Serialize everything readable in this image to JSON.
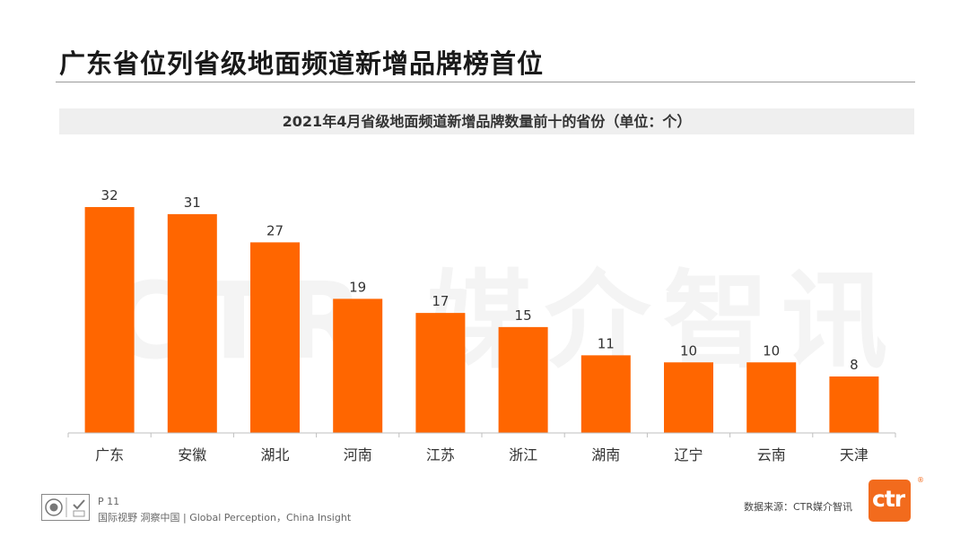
{
  "page_title": "广东省位列省级地面频道新增品牌榜首位",
  "watermark": "CTR 媒介智讯",
  "colors": {
    "bar": "#ff6600",
    "brand": "#f26b1d",
    "subtitle_band": "#efefef"
  },
  "chart_data": {
    "type": "bar",
    "title": "2021年4月省级地面频道新增品牌数量前十的省份（单位：个）",
    "categories": [
      "广东",
      "安徽",
      "湖北",
      "河南",
      "江苏",
      "浙江",
      "湖南",
      "辽宁",
      "云南",
      "天津"
    ],
    "values": [
      32,
      31,
      27,
      19,
      17,
      15,
      11,
      10,
      10,
      8
    ],
    "xlabel": "",
    "ylabel": "",
    "ylim": [
      0,
      32
    ],
    "grid": false,
    "legend": "none"
  },
  "footer": {
    "page_number": "P 11",
    "tagline": "国际视野  洞察中国 |  Global Perception，China Insight",
    "source": "数据来源：CTR媒介智讯",
    "brand_text": "ctr",
    "brand_mark": "®"
  }
}
